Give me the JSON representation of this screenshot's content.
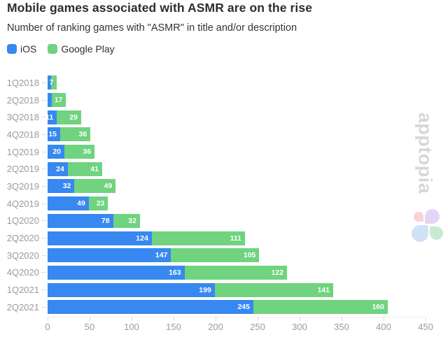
{
  "header": {
    "title": "Mobile games associated with ASMR are on the rise",
    "subtitle": "Number of ranking games with \"ASMR\" in title and/or description"
  },
  "legend": [
    {
      "label": "iOS",
      "color": "#3788f0"
    },
    {
      "label": "Google Play",
      "color": "#6fd37f"
    }
  ],
  "watermark": {
    "text": "apptopia",
    "text_color": "#d7d7d7",
    "logo_colors": {
      "top_left_petal": "#f8d2d8",
      "top_right_petal": "#e4d5f4",
      "bottom_left_petal": "#cfe2f8",
      "bottom_right_petal": "#c7ebd1"
    }
  },
  "chart_data": {
    "type": "bar",
    "orientation": "horizontal",
    "stacked": true,
    "grid": false,
    "legend_position": "top-left",
    "title": "Mobile games associated with ASMR are on the rise",
    "subtitle": "Number of ranking games with \"ASMR\" in title and/or description",
    "categories": [
      "1Q2018",
      "2Q2018",
      "3Q2018",
      "4Q2018",
      "1Q2019",
      "2Q2019",
      "3Q2019",
      "4Q2019",
      "1Q2020",
      "2Q2020",
      "3Q2020",
      "4Q2020",
      "1Q2021",
      "2Q2021"
    ],
    "series": [
      {
        "name": "iOS",
        "color": "#3788f0",
        "values": [
          3,
          5,
          11,
          15,
          20,
          24,
          32,
          49,
          78,
          124,
          147,
          163,
          199,
          245
        ],
        "labels": [
          "",
          "",
          "11",
          "15",
          "20",
          "24",
          "32",
          "49",
          "78",
          "124",
          "147",
          "163",
          "199",
          "245"
        ]
      },
      {
        "name": "Google Play",
        "color": "#6fd37f",
        "values": [
          7,
          17,
          29,
          36,
          36,
          41,
          49,
          23,
          32,
          111,
          105,
          122,
          141,
          160
        ],
        "labels": [
          "7",
          "17",
          "29",
          "36",
          "36",
          "41",
          "49",
          "23",
          "32",
          "111",
          "105",
          "122",
          "141",
          "160"
        ]
      }
    ],
    "xlim": [
      0,
      450
    ],
    "xticks": [
      0,
      50,
      100,
      150,
      200,
      250,
      300,
      350,
      400,
      450
    ],
    "xlabel": "",
    "ylabel": ""
  }
}
